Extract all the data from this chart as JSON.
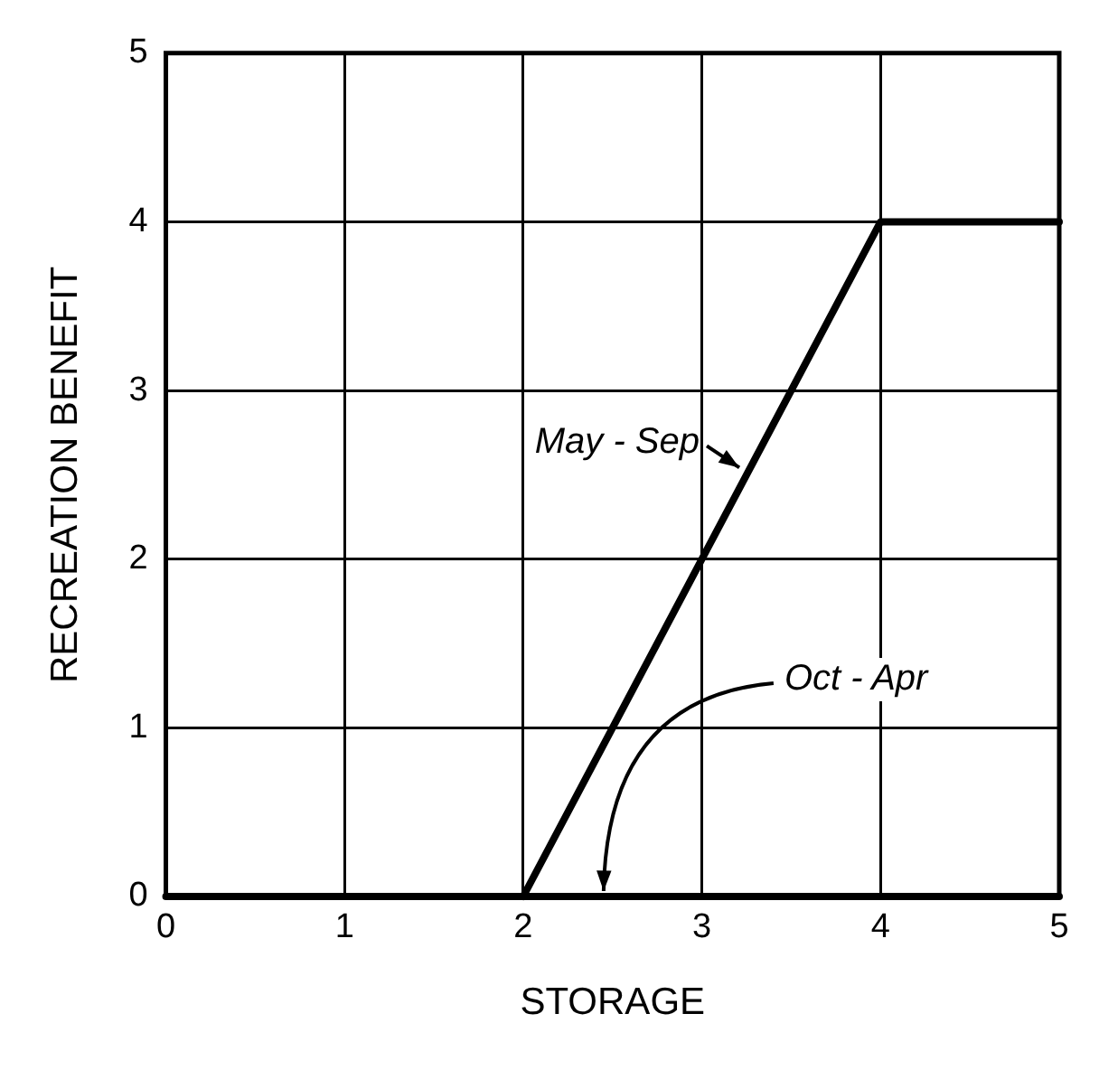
{
  "chart_data": {
    "type": "line",
    "xlabel": "STORAGE",
    "ylabel": "RECREATION BENEFIT",
    "xlim": [
      0,
      5
    ],
    "ylim": [
      0,
      5
    ],
    "xticks": [
      0,
      1,
      2,
      3,
      4,
      5
    ],
    "yticks": [
      0,
      1,
      2,
      3,
      4,
      5
    ],
    "grid": true,
    "legend": false,
    "marker": "none",
    "line_style": "solid",
    "series": [
      {
        "color": "#000000",
        "x": [
          2,
          4,
          5
        ],
        "values": [
          0,
          4,
          4
        ]
      },
      {
        "color": "#000000",
        "x": [
          0,
          5
        ],
        "values": [
          0,
          0
        ]
      }
    ],
    "annotations": [
      {
        "text": "May - Sep",
        "x": 3.25,
        "y": 2.5
      },
      {
        "text": "Oct - Apr",
        "x": 2.45,
        "y": 0
      }
    ]
  }
}
